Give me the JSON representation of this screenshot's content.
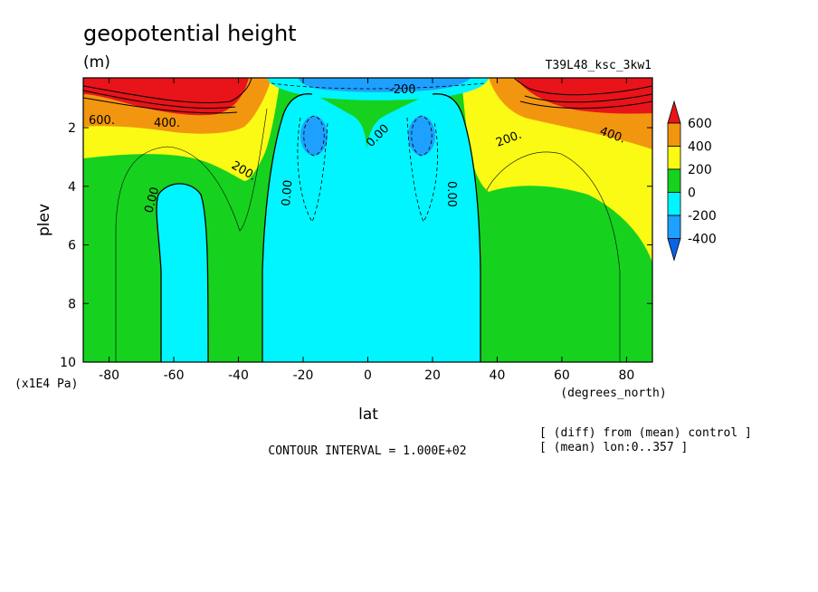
{
  "chart_data": {
    "type": "contour",
    "title": "geopotential height",
    "units": "(m)",
    "run_label": "T39L48_ksc_3kw1",
    "xlabel": "lat",
    "x_units": "(degrees_north)",
    "ylabel": "plev",
    "y_units": "(x1E4 Pa)",
    "xlim": [
      -88,
      88
    ],
    "ylim": [
      10,
      0.3
    ],
    "x_ticks": [
      -80,
      -60,
      -40,
      -20,
      0,
      20,
      40,
      60,
      80
    ],
    "x_tick_labels": [
      "-80",
      "-60",
      "-40",
      "-20",
      "0",
      "20",
      "40",
      "60",
      "80"
    ],
    "y_ticks": [
      2,
      4,
      6,
      8,
      10
    ],
    "y_tick_labels": [
      "2",
      "4",
      "6",
      "8",
      "10"
    ],
    "legend": {
      "levels": [
        "600",
        "400",
        "200",
        "0",
        "-200",
        "-400"
      ],
      "colors": [
        "#e8141a",
        "#f2960f",
        "#fafa14",
        "#16d21e",
        "#00f5ff",
        "#1ea0ff",
        "#0a64e6"
      ]
    },
    "contour_labels": [
      "600.",
      "400.",
      "200.",
      "0.00",
      "0.00",
      "0.00",
      "0.00",
      "-200",
      "200.",
      "400."
    ],
    "contour_interval_text": "CONTOUR INTERVAL = 1.000E+02",
    "notes": [
      "[ (diff) from (mean) control ]",
      "[ (mean) lon:0..357 ]"
    ]
  }
}
